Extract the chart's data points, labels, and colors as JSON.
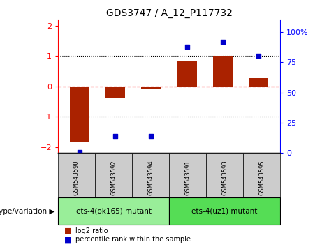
{
  "title": "GDS3747 / A_12_P117732",
  "samples": [
    "GSM543590",
    "GSM543592",
    "GSM543594",
    "GSM543591",
    "GSM543593",
    "GSM543595"
  ],
  "log2_ratio": [
    -1.85,
    -0.38,
    -0.1,
    0.82,
    1.02,
    0.28
  ],
  "percentile_rank": [
    1,
    14,
    14,
    88,
    92,
    80
  ],
  "bar_color": "#aa2200",
  "dot_color": "#0000cc",
  "ylim_left": [
    -2.2,
    2.2
  ],
  "ylim_right": [
    0,
    110
  ],
  "yticks_left": [
    -2,
    -1,
    0,
    1,
    2
  ],
  "yticks_right": [
    0,
    25,
    50,
    75,
    100
  ],
  "ytick_labels_right": [
    "0",
    "25",
    "50",
    "75",
    "100%"
  ],
  "hline_y": 0,
  "dotted_lines": [
    -1,
    0,
    1
  ],
  "group1_label": "ets-4(ok165) mutant",
  "group2_label": "ets-4(uz1) mutant",
  "genotype_label": "genotype/variation",
  "legend_bar_label": "log2 ratio",
  "legend_dot_label": "percentile rank within the sample",
  "group1_color": "#99ee99",
  "group2_color": "#55dd55",
  "header_color": "#cccccc",
  "bar_width": 0.55,
  "dot_size": 25
}
